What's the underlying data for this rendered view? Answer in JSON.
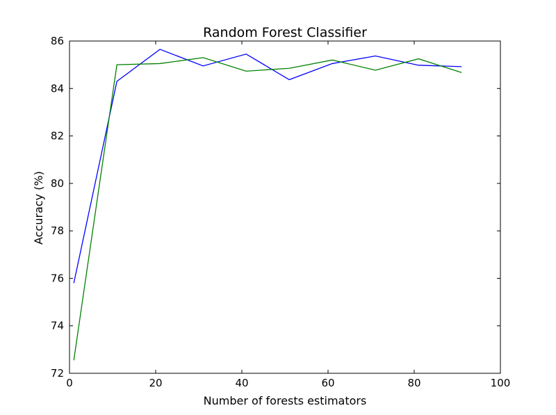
{
  "chart_data": {
    "type": "line",
    "title": "Random Forest Classifier",
    "xlabel": "Number of forests estimators",
    "ylabel": "Accuracy (%)",
    "xlim": [
      0,
      100
    ],
    "ylim": [
      72,
      86
    ],
    "x_ticks": [
      0,
      20,
      40,
      60,
      80,
      100
    ],
    "y_ticks": [
      72,
      74,
      76,
      78,
      80,
      82,
      84,
      86
    ],
    "grid": false,
    "x": [
      1,
      11,
      21,
      31,
      41,
      51,
      61,
      71,
      81,
      91
    ],
    "series": [
      {
        "color": "#0000ff",
        "values": [
          75.8,
          84.3,
          85.65,
          84.95,
          85.45,
          84.37,
          85.05,
          85.37,
          84.98,
          84.92
        ]
      },
      {
        "color": "#008000",
        "values": [
          72.55,
          85.0,
          85.05,
          85.3,
          84.73,
          84.85,
          85.2,
          84.77,
          85.25,
          84.67
        ]
      }
    ]
  }
}
